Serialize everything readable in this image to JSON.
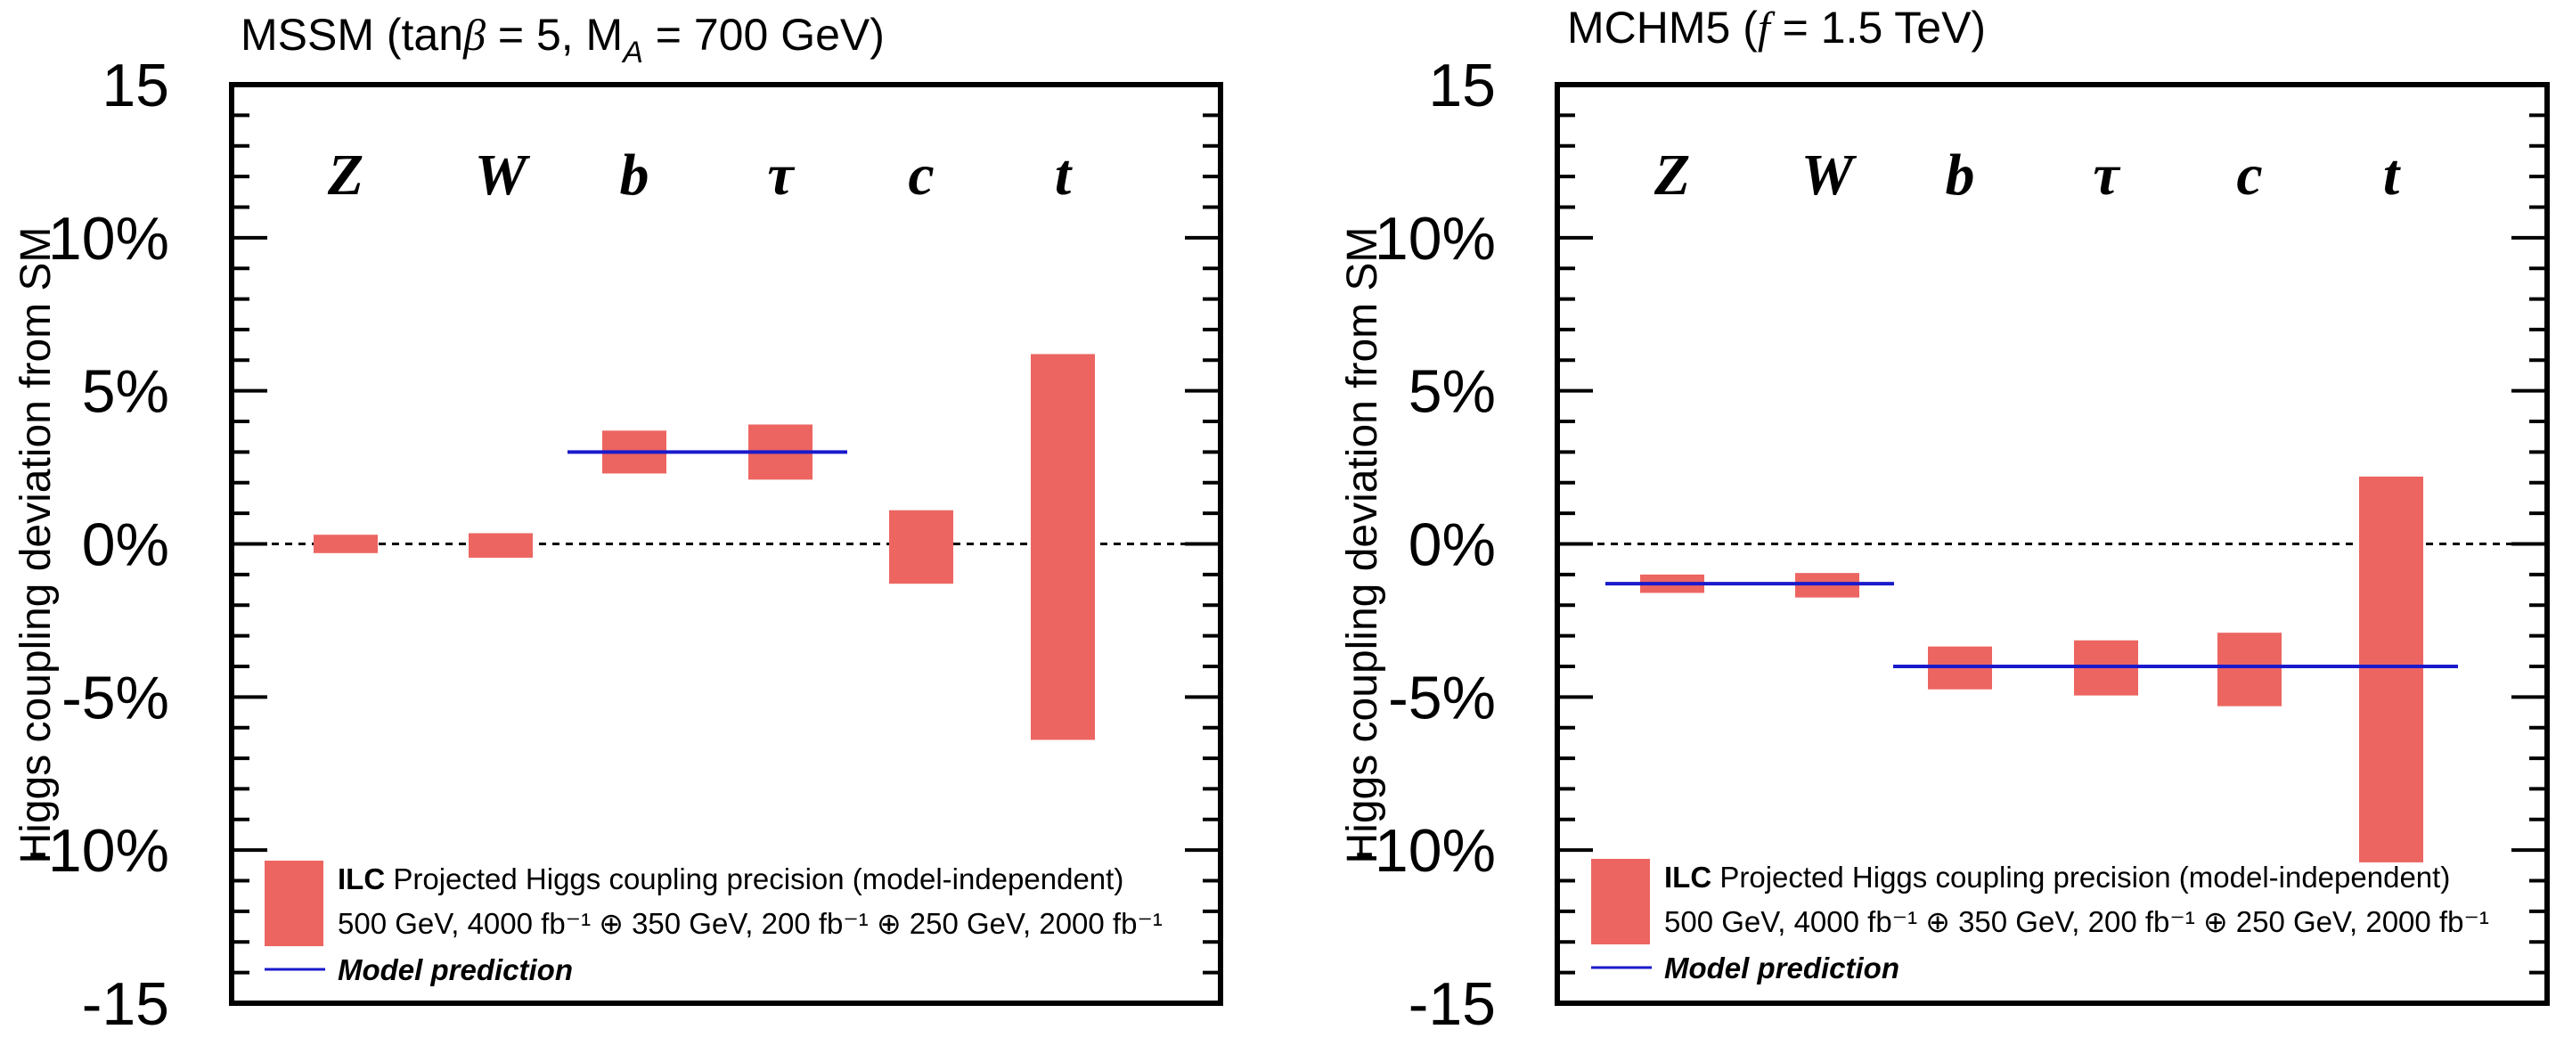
{
  "colors": {
    "bar": "#ec6561",
    "model_line": "#1a1acc",
    "axis": "#000000"
  },
  "chart_data": [
    {
      "type": "bar",
      "title": "MSSM (tanβ = 5, M_A = 700 GeV)",
      "title_parts": {
        "prefix": "MSSM (tan",
        "beta": "β",
        "mid": " = 5, M",
        "sub": "A",
        "suffix": " = 700 GeV)"
      },
      "ylabel": "Higgs coupling deviation from SM",
      "ylim": [
        -15,
        15
      ],
      "yticks": [
        -15,
        -10,
        -5,
        0,
        5,
        10,
        15
      ],
      "ytick_labels": [
        "-15",
        "-10%",
        "-5%",
        "0%",
        "5%",
        "10%",
        "15"
      ],
      "categories": [
        "Z",
        "W",
        "b",
        "τ",
        "c",
        "t"
      ],
      "series": [
        {
          "name": "ILC Projected Higgs coupling precision (model-independent)",
          "ranges": [
            [
              -0.3,
              0.3
            ],
            [
              -0.45,
              0.35
            ],
            [
              2.3,
              3.7
            ],
            [
              2.1,
              3.9
            ],
            [
              -1.3,
              1.1
            ],
            [
              -6.4,
              6.2
            ]
          ]
        },
        {
          "name": "Model prediction",
          "segments": [
            {
              "from": "b",
              "to": "τ",
              "value": 3.0
            }
          ]
        }
      ],
      "reference_line": 0,
      "legend": {
        "bold": "ILC",
        "text": " Projected Higgs coupling precision (model-independent)",
        "line2": "500 GeV, 4000 fb⁻¹ ⊕ 350 GeV, 200 fb⁻¹ ⊕ 250 GeV, 2000 fb⁻¹",
        "model": "Model prediction",
        "placement": "bottom-left"
      }
    },
    {
      "type": "bar",
      "title": "MCHM5 (f = 1.5 TeV)",
      "title_parts": {
        "prefix": "MCHM5 (",
        "f": "f",
        "suffix": " = 1.5 TeV)"
      },
      "ylabel": "Higgs coupling deviation from SM",
      "ylim": [
        -15,
        15
      ],
      "yticks": [
        -15,
        -10,
        -5,
        0,
        5,
        10,
        15
      ],
      "ytick_labels": [
        "-15",
        "-10%",
        "-5%",
        "0%",
        "5%",
        "10%",
        "15"
      ],
      "categories": [
        "Z",
        "W",
        "b",
        "τ",
        "c",
        "t"
      ],
      "series": [
        {
          "name": "ILC Projected Higgs coupling precision (model-independent)",
          "ranges": [
            [
              -1.6,
              -1.0
            ],
            [
              -1.75,
              -0.95
            ],
            [
              -4.75,
              -3.35
            ],
            [
              -4.95,
              -3.15
            ],
            [
              -5.3,
              -2.9
            ],
            [
              -10.4,
              2.2
            ]
          ]
        },
        {
          "name": "Model prediction",
          "segments": [
            {
              "from": "Z",
              "to": "W",
              "value": -1.3
            },
            {
              "from": "b",
              "to": "t",
              "value": -4.0
            }
          ]
        }
      ],
      "reference_line": 0,
      "legend": {
        "bold": "ILC",
        "text": " Projected Higgs coupling precision (model-independent)",
        "line2": "500 GeV, 4000 fb⁻¹ ⊕ 350 GeV, 200 fb⁻¹ ⊕ 250 GeV, 2000 fb⁻¹",
        "model": "Model prediction",
        "placement": "bottom-left"
      }
    }
  ]
}
